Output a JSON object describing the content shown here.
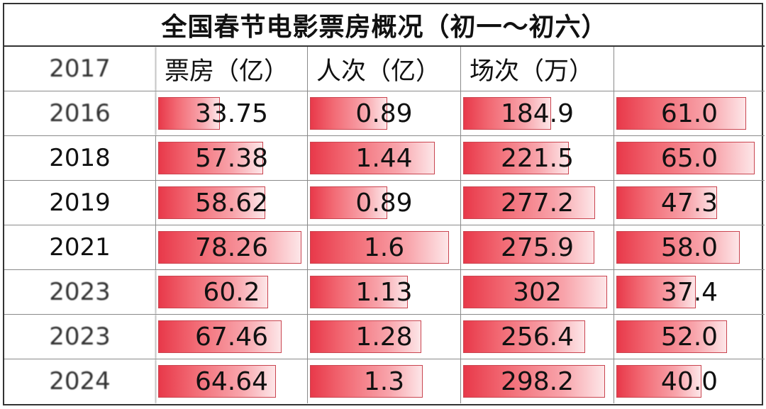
{
  "title": "全国春节电影票房概况（初一～初六）",
  "header": {
    "year": "2017",
    "col1": "票房（亿）",
    "col2": "人次（亿）",
    "col3": "场次（万）",
    "col4": ""
  },
  "rows": [
    {
      "year": "2016",
      "box": "33.75",
      "people": "0.89",
      "shows": "184.9",
      "rate": "61.0"
    },
    {
      "year": "2018",
      "box": "57.38",
      "people": "1.44",
      "shows": "221.5",
      "rate": "65.0"
    },
    {
      "year": "2019",
      "box": "58.62",
      "people": "0.89",
      "shows": "277.2",
      "rate": "47.3"
    },
    {
      "year": "2021",
      "box": "78.26",
      "people": "1.6",
      "shows": "275.9",
      "rate": "58.0"
    },
    {
      "year": "2023",
      "box": "60.2",
      "people": "1.13",
      "shows": "302",
      "rate": "37.4"
    },
    {
      "year": "2023",
      "box": "67.46",
      "people": "1.28",
      "shows": "256.4",
      "rate": "52.0"
    },
    {
      "year": "2024",
      "box": "64.64",
      "people": "1.3",
      "shows": "298.2",
      "rate": "40.0"
    }
  ],
  "chart_data": {
    "type": "table",
    "title": "全国春节电影票房概况（初一～初六）",
    "columns": [
      "票房（亿）",
      "人次（亿）",
      "场次（万）",
      ""
    ],
    "categories": [
      "2016",
      "2018",
      "2019",
      "2021",
      "2023",
      "2023",
      "2024"
    ],
    "series": [
      {
        "name": "票房（亿）",
        "values": [
          33.75,
          57.38,
          58.62,
          78.26,
          60.2,
          67.46,
          64.64
        ]
      },
      {
        "name": "人次（亿）",
        "values": [
          0.89,
          1.44,
          0.89,
          1.6,
          1.13,
          1.28,
          1.3
        ]
      },
      {
        "name": "场次（万）",
        "values": [
          184.9,
          221.5,
          277.2,
          275.9,
          302,
          256.4,
          298.2
        ]
      },
      {
        "values": [
          61.0,
          65.0,
          47.3,
          58.0,
          37.4,
          52.0,
          40.0
        ]
      }
    ],
    "bar_max": [
      80,
      1.7,
      310,
      68
    ],
    "colors": {
      "bar": "#e8394a",
      "bar_light": "#fde6e8"
    }
  }
}
